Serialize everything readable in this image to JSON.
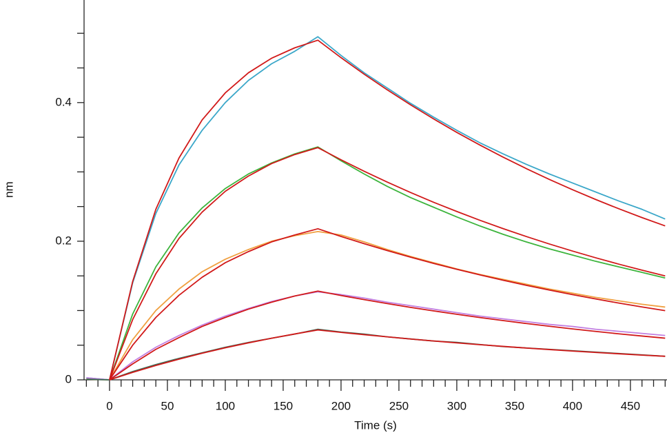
{
  "chart_data": {
    "type": "line",
    "xlabel": "Time (s)",
    "ylabel": "nm",
    "xlim": [
      -22,
      481.6
    ],
    "ylim": [
      0,
      0.548
    ],
    "xticks": [
      0,
      50,
      100,
      150,
      200,
      250,
      300,
      350,
      400,
      450
    ],
    "xminor_ticks": [
      -20,
      -10,
      10,
      20,
      30,
      40,
      60,
      70,
      80,
      90,
      110,
      120,
      130,
      140,
      160,
      170,
      180,
      190,
      210,
      220,
      230,
      240,
      260,
      270,
      280,
      290,
      310,
      320,
      330,
      340,
      360,
      370,
      380,
      390,
      410,
      420,
      430,
      440,
      460,
      470,
      480
    ],
    "yticks": [
      0,
      0.2,
      0.4
    ],
    "yminor_ticks": [
      0.05,
      0.1,
      0.15,
      0.25,
      0.3,
      0.35,
      0.45,
      0.5
    ],
    "x": [
      -20,
      0,
      20,
      40,
      60,
      80,
      100,
      120,
      140,
      160,
      180,
      200,
      220,
      240,
      260,
      280,
      300,
      320,
      340,
      360,
      380,
      400,
      420,
      440,
      460,
      480
    ],
    "series": [
      {
        "color": "#3aa7c9",
        "values": [
          0.003,
          0,
          0.14,
          0.24,
          0.31,
          0.36,
          0.4,
          0.432,
          0.456,
          0.474,
          0.495,
          0.468,
          0.443,
          0.421,
          0.399,
          0.379,
          0.36,
          0.342,
          0.326,
          0.311,
          0.297,
          0.284,
          0.271,
          0.258,
          0.246,
          0.232
        ]
      },
      {
        "color": "#3cb43c",
        "values": [
          0.002,
          0,
          0.095,
          0.163,
          0.212,
          0.248,
          0.276,
          0.297,
          0.313,
          0.326,
          0.336,
          0.316,
          0.297,
          0.279,
          0.263,
          0.249,
          0.235,
          0.222,
          0.21,
          0.199,
          0.189,
          0.18,
          0.171,
          0.163,
          0.155,
          0.147
        ]
      },
      {
        "color": "#f0a040",
        "values": [
          0.001,
          0,
          0.058,
          0.1,
          0.131,
          0.156,
          0.174,
          0.188,
          0.2,
          0.208,
          0.214,
          0.209,
          0.199,
          0.188,
          0.178,
          0.169,
          0.16,
          0.152,
          0.145,
          0.138,
          0.131,
          0.125,
          0.119,
          0.114,
          0.109,
          0.105
        ]
      },
      {
        "color": "#c27fe0",
        "values": [
          0.003,
          0,
          0.026,
          0.047,
          0.064,
          0.079,
          0.092,
          0.103,
          0.113,
          0.121,
          0.127,
          0.123,
          0.118,
          0.112,
          0.107,
          0.102,
          0.097,
          0.092,
          0.088,
          0.084,
          0.08,
          0.077,
          0.073,
          0.07,
          0.067,
          0.064
        ]
      },
      {
        "color": "#3d6b55",
        "values": [
          0.001,
          0,
          0.012,
          0.022,
          0.031,
          0.039,
          0.047,
          0.054,
          0.06,
          0.066,
          0.073,
          0.069,
          0.066,
          0.062,
          0.059,
          0.056,
          0.054,
          0.051,
          0.048,
          0.046,
          0.044,
          0.042,
          0.04,
          0.038,
          0.036,
          0.034
        ]
      },
      {
        "color": "#d11919",
        "values": [
          null,
          0,
          0.142,
          0.246,
          0.32,
          0.375,
          0.414,
          0.443,
          0.464,
          0.479,
          0.49,
          0.4648,
          0.4409,
          0.4183,
          0.3968,
          0.3764,
          0.357,
          0.3387,
          0.3213,
          0.3048,
          0.2891,
          0.2743,
          0.2602,
          0.2468,
          0.2341,
          0.2221
        ]
      },
      {
        "color": "#d11919",
        "values": [
          null,
          0,
          0.087,
          0.153,
          0.204,
          0.242,
          0.272,
          0.294,
          0.312,
          0.325,
          0.335,
          0.3175,
          0.3009,
          0.2852,
          0.2703,
          0.2562,
          0.2429,
          0.2302,
          0.2182,
          0.2068,
          0.196,
          0.1858,
          0.1761,
          0.1669,
          0.1582,
          0.1499
        ]
      },
      {
        "color": "#d11919",
        "values": [
          null,
          0,
          0.05,
          0.09,
          0.122,
          0.148,
          0.169,
          0.185,
          0.199,
          0.209,
          0.218,
          0.2069,
          0.1964,
          0.1865,
          0.177,
          0.168,
          0.1595,
          0.1514,
          0.1437,
          0.1364,
          0.1295,
          0.123,
          0.1167,
          0.1108,
          0.1052,
          0.0998
        ]
      },
      {
        "color": "#d11919",
        "values": [
          null,
          0,
          0.023,
          0.044,
          0.061,
          0.077,
          0.09,
          0.102,
          0.112,
          0.121,
          0.128,
          0.1217,
          0.1157,
          0.11,
          0.1046,
          0.0995,
          0.0946,
          0.0899,
          0.0855,
          0.0813,
          0.0773,
          0.0735,
          0.0699,
          0.0664,
          0.0632,
          0.0601
        ]
      },
      {
        "color": "#d11919",
        "values": [
          null,
          0,
          0.0108,
          0.0207,
          0.0298,
          0.0384,
          0.0462,
          0.0534,
          0.06,
          0.0662,
          0.072,
          0.0685,
          0.0651,
          0.062,
          0.0589,
          0.0561,
          0.0533,
          0.0507,
          0.0483,
          0.0459,
          0.0437,
          0.0415,
          0.0395,
          0.0376,
          0.0357,
          0.034
        ]
      }
    ]
  }
}
